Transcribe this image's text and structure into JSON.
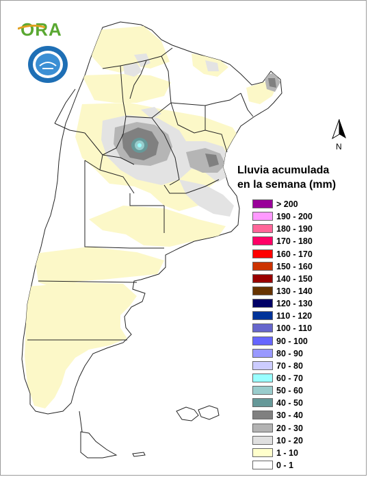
{
  "logo": {
    "text": "ORA",
    "color": "#5aa832"
  },
  "seal": {
    "name": "smn-seal-logo",
    "ring_color": "#1e6fb5",
    "inner_color": "#ffffff"
  },
  "north_arrow": {
    "label": "N"
  },
  "legend": {
    "title_line1": "Lluvia acumulada",
    "title_line2": "en la semana (mm)",
    "items": [
      {
        "label": "> 200",
        "color": "#990099"
      },
      {
        "label": "190 - 200",
        "color": "#ff99ff"
      },
      {
        "label": "180 - 190",
        "color": "#ff6699"
      },
      {
        "label": "170 - 180",
        "color": "#ff0066"
      },
      {
        "label": "160 - 170",
        "color": "#ff0000"
      },
      {
        "label": "150 - 160",
        "color": "#cc3300"
      },
      {
        "label": "140 - 150",
        "color": "#990000"
      },
      {
        "label": "130 - 140",
        "color": "#663300"
      },
      {
        "label": "120 - 130",
        "color": "#000066"
      },
      {
        "label": "110 - 120",
        "color": "#003399"
      },
      {
        "label": "100 - 110",
        "color": "#6666cc"
      },
      {
        "label": "90 - 100",
        "color": "#6666ff"
      },
      {
        "label": "80 - 90",
        "color": "#9999ff"
      },
      {
        "label": "70 - 80",
        "color": "#ccccff"
      },
      {
        "label": "60 - 70",
        "color": "#99ffff"
      },
      {
        "label": "50 - 60",
        "color": "#99cccc"
      },
      {
        "label": "40 - 50",
        "color": "#669999"
      },
      {
        "label": "30 - 40",
        "color": "#808080"
      },
      {
        "label": "20 - 30",
        "color": "#b3b3b3"
      },
      {
        "label": "10 - 20",
        "color": "#e0e0e0"
      },
      {
        "label": "1 - 10",
        "color": "#ffffcc"
      },
      {
        "label": "0 - 1",
        "color": "#ffffff"
      }
    ]
  },
  "map": {
    "land_color": "#ffffff",
    "border_color": "#222222",
    "light_rain_color": "#fcf8c8",
    "gray_light": "#e3e3e3",
    "gray_mid": "#b5b5b5",
    "gray_dark": "#808080",
    "teal": "#7fb3b3",
    "teal_light": "#a6d6d6"
  }
}
